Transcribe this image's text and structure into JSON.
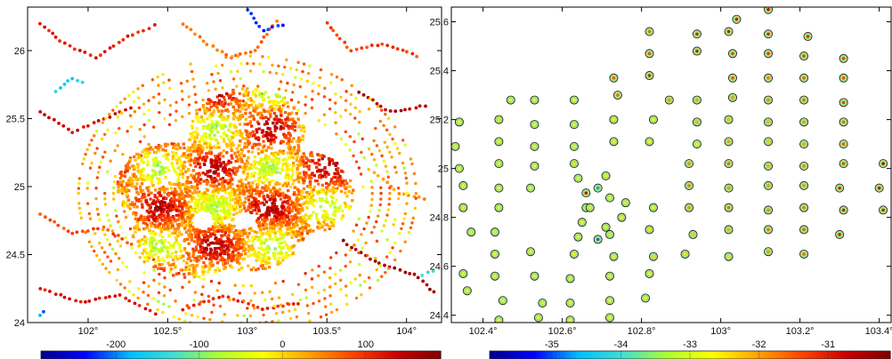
{
  "chart_data": [
    {
      "type": "scatter",
      "panel": "left",
      "description_kind": "dense colored point map",
      "x_ticks": [
        "102°",
        "102.5°",
        "103°",
        "103.5°",
        "104°"
      ],
      "x_tick_values": [
        102,
        102.5,
        103,
        103.5,
        104
      ],
      "y_ticks": [
        "24",
        "24.5",
        "25",
        "25.5",
        "26"
      ],
      "y_tick_values": [
        24,
        24.5,
        25,
        25.5,
        26
      ],
      "xlim": [
        101.62,
        104.22
      ],
      "ylim": [
        24.0,
        26.32
      ],
      "colorbar": {
        "ticks": [
          "-200",
          "-100",
          "0",
          "100"
        ],
        "tick_values": [
          -200,
          -100,
          0,
          100
        ],
        "range": [
          -290,
          190
        ],
        "colormap": "jet",
        "colors": [
          "#00008b",
          "#0000ff",
          "#00bfff",
          "#40e0d0",
          "#adff2f",
          "#ffff00",
          "#ffa500",
          "#ff4500",
          "#cc0000",
          "#7f0000"
        ]
      },
      "cluster": {
        "centers": [
          [
            103.0,
            25.4
          ],
          [
            102.55,
            25.0
          ],
          [
            102.65,
            24.65
          ],
          [
            103.3,
            24.95
          ],
          [
            103.0,
            24.7
          ]
        ],
        "radius_deg": 0.32,
        "hole_centers": [
          [
            102.72,
            24.75
          ],
          [
            102.98,
            24.75
          ]
        ],
        "hole_radius_deg": 0.07
      },
      "sample_tracks": [
        {
          "points": [
            [
              101.7,
              26.2
            ],
            [
              101.85,
              26.05
            ],
            [
              102.05,
              25.95
            ],
            [
              102.25,
              26.1
            ],
            [
              102.45,
              26.2
            ]
          ],
          "value": 110
        },
        {
          "points": [
            [
              101.7,
              25.55
            ],
            [
              101.9,
              25.4
            ],
            [
              102.1,
              25.5
            ],
            [
              102.3,
              25.6
            ]
          ],
          "value": 130
        },
        {
          "points": [
            [
              101.8,
              25.7
            ],
            [
              101.9,
              25.8
            ],
            [
              102.0,
              25.75
            ]
          ],
          "value": -160
        },
        {
          "points": [
            [
              102.6,
              26.2
            ],
            [
              102.75,
              26.05
            ],
            [
              102.9,
              25.95
            ],
            [
              103.05,
              26.0
            ],
            [
              103.2,
              26.25
            ]
          ],
          "value": 60
        },
        {
          "points": [
            [
              103.0,
              26.3
            ],
            [
              103.1,
              26.15
            ],
            [
              103.25,
              26.2
            ]
          ],
          "value": -230
        },
        {
          "points": [
            [
              103.5,
              26.2
            ],
            [
              103.65,
              26.0
            ],
            [
              103.85,
              26.05
            ],
            [
              104.1,
              25.95
            ]
          ],
          "value": 90
        },
        {
          "points": [
            [
              103.7,
              25.7
            ],
            [
              103.9,
              25.55
            ],
            [
              104.15,
              25.6
            ]
          ],
          "value": 150
        },
        {
          "points": [
            [
              103.8,
              25.1
            ],
            [
              103.95,
              24.95
            ],
            [
              104.15,
              24.9
            ]
          ],
          "value": 40
        },
        {
          "points": [
            [
              103.6,
              24.6
            ],
            [
              103.8,
              24.45
            ],
            [
              104.05,
              24.35
            ],
            [
              104.2,
              24.2
            ]
          ],
          "value": 170
        },
        {
          "points": [
            [
              101.7,
              24.8
            ],
            [
              101.9,
              24.65
            ],
            [
              102.1,
              24.7
            ],
            [
              102.3,
              24.55
            ]
          ],
          "value": 80
        },
        {
          "points": [
            [
              101.7,
              24.25
            ],
            [
              101.95,
              24.15
            ],
            [
              102.2,
              24.2
            ],
            [
              102.45,
              24.05
            ]
          ],
          "value": 120
        },
        {
          "points": [
            [
              102.6,
              24.1
            ],
            [
              102.85,
              24.2
            ],
            [
              103.1,
              24.1
            ],
            [
              103.35,
              24.15
            ]
          ],
          "value": 100
        },
        {
          "points": [
            [
              101.7,
              24.05
            ],
            [
              101.75,
              24.1
            ]
          ],
          "value": -200
        },
        {
          "points": [
            [
              104.1,
              24.35
            ],
            [
              104.2,
              24.4
            ]
          ],
          "value": -140
        }
      ]
    },
    {
      "type": "scatter",
      "panel": "right",
      "x_ticks": [
        "102.4°",
        "102.6°",
        "102.8°",
        "103°",
        "103.2°",
        "103.4°"
      ],
      "x_tick_values": [
        102.4,
        102.6,
        102.8,
        103.0,
        103.2,
        103.4
      ],
      "y_ticks": [
        "24.4",
        "24.6",
        "24.8",
        "25",
        "25.2",
        "25.4",
        "25.6"
      ],
      "y_tick_values": [
        24.4,
        24.6,
        24.8,
        25.0,
        25.2,
        25.4,
        25.6
      ],
      "xlim": [
        102.32,
        103.43
      ],
      "ylim": [
        24.37,
        25.66
      ],
      "colorbar": {
        "ticks": [
          "-35",
          "-34",
          "-33",
          "-32",
          "-31"
        ],
        "tick_values": [
          -35,
          -34,
          -33,
          -32,
          -31
        ],
        "range": [
          -35.9,
          -30.1
        ],
        "colormap": "jet",
        "colors": [
          "#00008b",
          "#0000ff",
          "#00bfff",
          "#40e0d0",
          "#adff2f",
          "#ffff00",
          "#ffa500",
          "#ff4500",
          "#cc0000",
          "#7f0000"
        ]
      },
      "points": [
        {
          "x": 102.33,
          "y": 25.09,
          "v": -32.6
        },
        {
          "x": 102.34,
          "y": 25.19,
          "v": -32.7
        },
        {
          "x": 102.34,
          "y": 25.0,
          "v": -32.8
        },
        {
          "x": 102.35,
          "y": 24.93,
          "v": -32.6
        },
        {
          "x": 102.35,
          "y": 24.84,
          "v": -32.9
        },
        {
          "x": 102.37,
          "y": 24.74,
          "v": -33.0
        },
        {
          "x": 102.35,
          "y": 24.57,
          "v": -32.9
        },
        {
          "x": 102.36,
          "y": 24.5,
          "v": -32.8
        },
        {
          "x": 102.44,
          "y": 24.38,
          "v": -32.7
        },
        {
          "x": 102.45,
          "y": 24.46,
          "v": -32.9
        },
        {
          "x": 102.43,
          "y": 24.56,
          "v": -32.6
        },
        {
          "x": 102.43,
          "y": 24.65,
          "v": -32.8
        },
        {
          "x": 102.43,
          "y": 24.74,
          "v": -33.0
        },
        {
          "x": 102.44,
          "y": 24.84,
          "v": -32.9
        },
        {
          "x": 102.44,
          "y": 24.92,
          "v": -32.7
        },
        {
          "x": 102.44,
          "y": 25.02,
          "v": -32.8
        },
        {
          "x": 102.44,
          "y": 25.11,
          "v": -32.6
        },
        {
          "x": 102.44,
          "y": 25.2,
          "v": -32.5
        },
        {
          "x": 102.47,
          "y": 25.28,
          "v": -32.9
        },
        {
          "x": 102.54,
          "y": 24.39,
          "v": -32.8
        },
        {
          "x": 102.55,
          "y": 24.45,
          "v": -33.0
        },
        {
          "x": 102.53,
          "y": 24.56,
          "v": -32.8
        },
        {
          "x": 102.52,
          "y": 24.66,
          "v": -32.6
        },
        {
          "x": 102.52,
          "y": 24.92,
          "v": -32.9
        },
        {
          "x": 102.53,
          "y": 25.01,
          "v": -32.7
        },
        {
          "x": 102.53,
          "y": 25.09,
          "v": -32.6
        },
        {
          "x": 102.53,
          "y": 25.18,
          "v": -32.8
        },
        {
          "x": 102.53,
          "y": 25.28,
          "v": -32.9
        },
        {
          "x": 102.62,
          "y": 24.38,
          "v": -32.7
        },
        {
          "x": 102.62,
          "y": 24.45,
          "v": -32.6
        },
        {
          "x": 102.62,
          "y": 24.55,
          "v": -32.9
        },
        {
          "x": 102.63,
          "y": 24.65,
          "v": -32.8
        },
        {
          "x": 102.64,
          "y": 24.72,
          "v": -32.6
        },
        {
          "x": 102.65,
          "y": 24.78,
          "v": -32.8
        },
        {
          "x": 102.66,
          "y": 24.84,
          "v": -33.0
        },
        {
          "x": 102.66,
          "y": 24.9,
          "v": -30.8
        },
        {
          "x": 102.64,
          "y": 24.96,
          "v": -32.9
        },
        {
          "x": 102.63,
          "y": 25.02,
          "v": -32.5
        },
        {
          "x": 102.63,
          "y": 25.09,
          "v": -32.8
        },
        {
          "x": 102.63,
          "y": 25.18,
          "v": -32.6
        },
        {
          "x": 102.63,
          "y": 25.28,
          "v": -32.7
        },
        {
          "x": 102.67,
          "y": 24.84,
          "v": -33.1
        },
        {
          "x": 102.69,
          "y": 24.71,
          "v": -34.9
        },
        {
          "x": 102.69,
          "y": 24.92,
          "v": -34.7
        },
        {
          "x": 102.71,
          "y": 24.97,
          "v": -32.9
        },
        {
          "x": 102.72,
          "y": 24.88,
          "v": -32.8
        },
        {
          "x": 102.71,
          "y": 24.76,
          "v": -32.9
        },
        {
          "x": 102.72,
          "y": 24.73,
          "v": -33.1
        },
        {
          "x": 102.72,
          "y": 24.39,
          "v": -32.8
        },
        {
          "x": 102.72,
          "y": 24.46,
          "v": -32.7
        },
        {
          "x": 102.72,
          "y": 24.56,
          "v": -32.9
        },
        {
          "x": 102.73,
          "y": 24.64,
          "v": -32.6
        },
        {
          "x": 102.75,
          "y": 24.8,
          "v": -32.8
        },
        {
          "x": 102.76,
          "y": 24.86,
          "v": -33.0
        },
        {
          "x": 102.73,
          "y": 25.11,
          "v": -32.8
        },
        {
          "x": 102.73,
          "y": 25.2,
          "v": -32.6
        },
        {
          "x": 102.74,
          "y": 25.3,
          "v": -31.6
        },
        {
          "x": 102.73,
          "y": 25.37,
          "v": -31.5
        },
        {
          "x": 102.81,
          "y": 24.47,
          "v": -32.6
        },
        {
          "x": 102.82,
          "y": 24.57,
          "v": -32.8
        },
        {
          "x": 102.83,
          "y": 24.64,
          "v": -32.4
        },
        {
          "x": 102.82,
          "y": 24.75,
          "v": -32.5
        },
        {
          "x": 102.83,
          "y": 24.84,
          "v": -32.7
        },
        {
          "x": 102.82,
          "y": 25.11,
          "v": -32.7
        },
        {
          "x": 102.83,
          "y": 25.2,
          "v": -32.8
        },
        {
          "x": 102.82,
          "y": 25.38,
          "v": -31.0
        },
        {
          "x": 102.82,
          "y": 25.47,
          "v": -31.4
        },
        {
          "x": 102.82,
          "y": 25.56,
          "v": -31.6
        },
        {
          "x": 102.87,
          "y": 25.28,
          "v": -31.9
        },
        {
          "x": 102.91,
          "y": 24.65,
          "v": -32.5
        },
        {
          "x": 102.93,
          "y": 24.73,
          "v": -32.3
        },
        {
          "x": 102.92,
          "y": 24.84,
          "v": -31.9
        },
        {
          "x": 102.92,
          "y": 24.93,
          "v": -31.7
        },
        {
          "x": 102.92,
          "y": 25.02,
          "v": -31.8
        },
        {
          "x": 102.94,
          "y": 25.1,
          "v": -32.6
        },
        {
          "x": 102.94,
          "y": 25.19,
          "v": -32.1
        },
        {
          "x": 102.94,
          "y": 25.28,
          "v": -32.0
        },
        {
          "x": 102.94,
          "y": 25.48,
          "v": -30.9
        },
        {
          "x": 102.94,
          "y": 25.55,
          "v": -31.0
        },
        {
          "x": 103.02,
          "y": 24.64,
          "v": -32.5
        },
        {
          "x": 103.02,
          "y": 24.75,
          "v": -32.1
        },
        {
          "x": 103.02,
          "y": 24.84,
          "v": -31.6
        },
        {
          "x": 103.02,
          "y": 24.92,
          "v": -31.9
        },
        {
          "x": 103.02,
          "y": 25.02,
          "v": -31.6
        },
        {
          "x": 103.02,
          "y": 25.11,
          "v": -32.0
        },
        {
          "x": 103.02,
          "y": 25.2,
          "v": -32.2
        },
        {
          "x": 103.03,
          "y": 25.29,
          "v": -31.9
        },
        {
          "x": 103.03,
          "y": 25.37,
          "v": -31.4
        },
        {
          "x": 103.03,
          "y": 25.47,
          "v": -31.3
        },
        {
          "x": 103.02,
          "y": 25.56,
          "v": -30.9
        },
        {
          "x": 103.04,
          "y": 25.61,
          "v": -30.9
        },
        {
          "x": 103.12,
          "y": 25.65,
          "v": -30.8
        },
        {
          "x": 103.12,
          "y": 25.55,
          "v": -31.0
        },
        {
          "x": 103.12,
          "y": 25.47,
          "v": -31.2
        },
        {
          "x": 103.12,
          "y": 25.37,
          "v": -31.7
        },
        {
          "x": 103.12,
          "y": 25.28,
          "v": -31.8
        },
        {
          "x": 103.12,
          "y": 25.19,
          "v": -32.1
        },
        {
          "x": 103.12,
          "y": 25.11,
          "v": -32.3
        },
        {
          "x": 103.12,
          "y": 25.01,
          "v": -32.1
        },
        {
          "x": 103.12,
          "y": 24.93,
          "v": -31.9
        },
        {
          "x": 103.12,
          "y": 24.83,
          "v": -31.8
        },
        {
          "x": 103.12,
          "y": 24.75,
          "v": -31.7
        },
        {
          "x": 103.12,
          "y": 24.66,
          "v": -31.9
        },
        {
          "x": 103.21,
          "y": 24.65,
          "v": -31.6
        },
        {
          "x": 103.21,
          "y": 24.75,
          "v": -31.5
        },
        {
          "x": 103.21,
          "y": 24.84,
          "v": -31.7
        },
        {
          "x": 103.21,
          "y": 24.93,
          "v": -31.9
        },
        {
          "x": 103.21,
          "y": 25.01,
          "v": -31.8
        },
        {
          "x": 103.21,
          "y": 25.1,
          "v": -32.0
        },
        {
          "x": 103.21,
          "y": 25.19,
          "v": -31.9
        },
        {
          "x": 103.21,
          "y": 25.28,
          "v": -31.6
        },
        {
          "x": 103.21,
          "y": 25.37,
          "v": -31.5
        },
        {
          "x": 103.21,
          "y": 25.46,
          "v": -31.3
        },
        {
          "x": 103.22,
          "y": 25.54,
          "v": -31.1
        },
        {
          "x": 103.31,
          "y": 25.45,
          "v": -31.3
        },
        {
          "x": 103.31,
          "y": 25.37,
          "v": -31.4
        },
        {
          "x": 103.31,
          "y": 25.27,
          "v": -31.3
        },
        {
          "x": 103.31,
          "y": 25.19,
          "v": -31.6
        },
        {
          "x": 103.31,
          "y": 25.1,
          "v": -31.5
        },
        {
          "x": 103.31,
          "y": 25.02,
          "v": -31.4
        },
        {
          "x": 103.3,
          "y": 24.92,
          "v": -31.0
        },
        {
          "x": 103.31,
          "y": 24.83,
          "v": -30.9
        },
        {
          "x": 103.3,
          "y": 24.73,
          "v": -30.9
        },
        {
          "x": 103.41,
          "y": 25.02,
          "v": -30.6
        },
        {
          "x": 103.4,
          "y": 24.92,
          "v": -30.8
        },
        {
          "x": 103.41,
          "y": 24.83,
          "v": -30.9
        }
      ]
    }
  ]
}
